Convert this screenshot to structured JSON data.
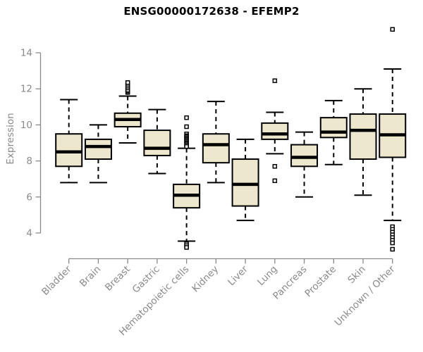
{
  "page": {
    "background": "#ffffff"
  },
  "chart_data": {
    "type": "boxplot",
    "title": "ENSG00000172638 - EFEMP2",
    "xlabel": "",
    "ylabel": "Expression",
    "ylim": [
      4,
      14
    ],
    "yticks": [
      14,
      12,
      10,
      8,
      6,
      4
    ],
    "grid": false,
    "legend": null,
    "categories": [
      "Bladder",
      "Brain",
      "Breast",
      "Gastric",
      "Hematopoietic cells",
      "Kidney",
      "Liver",
      "Lung",
      "Pancreas",
      "Prostate",
      "Skin",
      "Unknown / Other"
    ],
    "boxes": [
      {
        "category": "Bladder",
        "low": 6.8,
        "q1": 7.7,
        "median": 8.5,
        "q3": 9.5,
        "high": 11.4,
        "outliers": []
      },
      {
        "category": "Brain",
        "low": 6.8,
        "q1": 8.1,
        "median": 8.8,
        "q3": 9.2,
        "high": 10.0,
        "outliers": []
      },
      {
        "category": "Breast",
        "low": 9.0,
        "q1": 9.9,
        "median": 10.3,
        "q3": 10.65,
        "high": 11.6,
        "outliers": [
          11.8,
          11.87,
          11.93,
          12.05,
          12.15,
          12.25,
          12.35
        ]
      },
      {
        "category": "Gastric",
        "low": 7.3,
        "q1": 8.3,
        "median": 8.7,
        "q3": 9.7,
        "high": 10.85,
        "outliers": []
      },
      {
        "category": "Hematopoietic cells",
        "low": 3.55,
        "q1": 5.4,
        "median": 6.1,
        "q3": 6.7,
        "high": 8.7,
        "outliers": [
          10.4,
          9.9,
          9.5,
          9.4,
          9.34,
          9.27,
          9.2,
          9.14,
          9.07,
          9.0,
          8.94,
          8.87,
          8.8,
          3.4,
          3.3,
          3.2
        ]
      },
      {
        "category": "Kidney",
        "low": 6.8,
        "q1": 7.9,
        "median": 8.9,
        "q3": 9.5,
        "high": 11.3,
        "outliers": []
      },
      {
        "category": "Liver",
        "low": 4.7,
        "q1": 5.5,
        "median": 6.7,
        "q3": 8.1,
        "high": 9.2,
        "outliers": []
      },
      {
        "category": "Lung",
        "low": 8.4,
        "q1": 9.2,
        "median": 9.5,
        "q3": 10.1,
        "high": 10.7,
        "outliers": [
          12.45,
          7.7,
          6.9
        ]
      },
      {
        "category": "Pancreas",
        "low": 6.0,
        "q1": 7.7,
        "median": 8.2,
        "q3": 8.9,
        "high": 9.6,
        "outliers": []
      },
      {
        "category": "Prostate",
        "low": 7.8,
        "q1": 9.3,
        "median": 9.6,
        "q3": 10.4,
        "high": 11.35,
        "outliers": []
      },
      {
        "category": "Skin",
        "low": 6.1,
        "q1": 8.1,
        "median": 9.7,
        "q3": 10.6,
        "high": 12.0,
        "outliers": []
      },
      {
        "category": "Unknown / Other",
        "low": 4.7,
        "q1": 8.2,
        "median": 9.45,
        "q3": 10.6,
        "high": 13.1,
        "outliers": [
          15.3,
          4.35,
          4.2,
          4.05,
          3.9,
          3.75,
          3.6,
          3.45,
          3.1
        ]
      }
    ],
    "style": {
      "box_fill": "#EDE8CD",
      "box_border": "#000000",
      "median_color": "#000000",
      "whisker_color": "#000000",
      "outlier_fill": "#ffffff",
      "axis_color": "#8a8a8a",
      "tick_label_color": "#8a8a8a",
      "title_color": "#000000"
    }
  }
}
